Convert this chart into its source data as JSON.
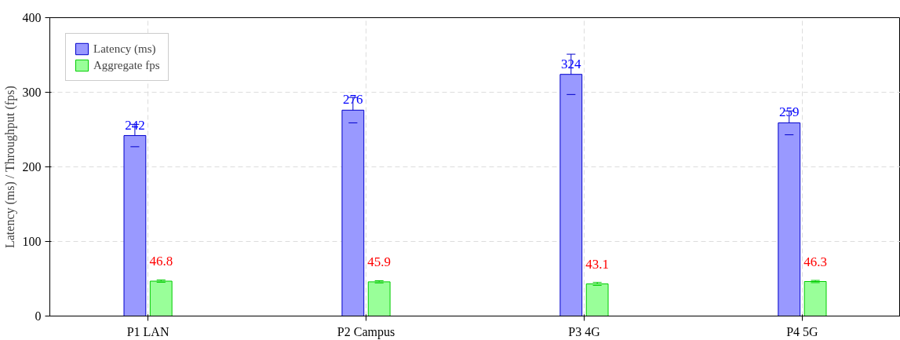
{
  "chart_data": {
    "type": "bar",
    "ylabel": "Latency (ms) / Throughput (fps)",
    "categories": [
      "P1 LAN",
      "P2 Campus",
      "P3 4G",
      "P4 5G"
    ],
    "series": [
      {
        "name": "Latency (ms)",
        "color": "#9999ff",
        "values": [
          242,
          276,
          324,
          259
        ],
        "errors": [
          15,
          17,
          27,
          16
        ],
        "value_labels": [
          "242",
          "276",
          "324",
          "259"
        ]
      },
      {
        "name": "Aggregate fps",
        "color": "#99ff99",
        "values": [
          46.8,
          45.9,
          43.1,
          46.3
        ],
        "errors": [
          1.5,
          1.5,
          2,
          1.5
        ],
        "value_labels": [
          "46.8",
          "45.9",
          "43.1",
          "46.3"
        ]
      }
    ],
    "ylim": [
      0,
      400
    ],
    "yticks": [
      0,
      100,
      200,
      300,
      400
    ],
    "grid": true,
    "legend": "top left"
  }
}
